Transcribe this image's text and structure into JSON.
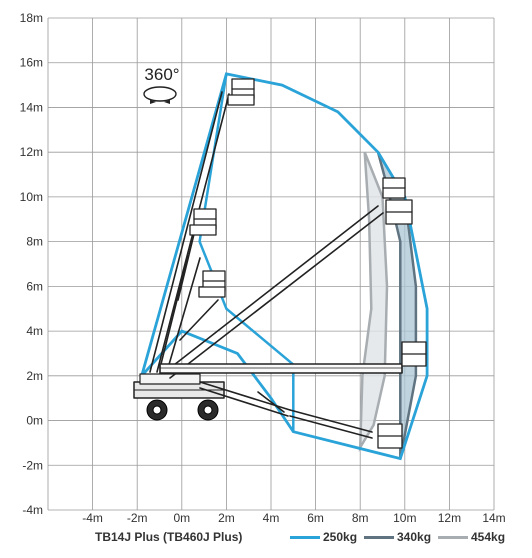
{
  "chart_data": {
    "type": "diagram",
    "rotation_label": "360°",
    "x_ticks": [
      "-4m",
      "-2m",
      "0m",
      "2m",
      "4m",
      "6m",
      "8m",
      "10m",
      "12m",
      "14m"
    ],
    "y_ticks": [
      "18m",
      "16m",
      "14m",
      "12m",
      "10m",
      "8m",
      "6m",
      "4m",
      "2m",
      "0m",
      "-2m",
      "-4m"
    ],
    "xlim": [
      -6,
      14
    ],
    "ylim": [
      -4,
      18
    ],
    "model_label": "TB14J Plus (TB460J Plus)",
    "legend": [
      {
        "label": "250kg",
        "color": "#2aa3d8"
      },
      {
        "label": "340kg",
        "color": "#5f7480"
      },
      {
        "label": "454kg",
        "color": "#a8adb1"
      }
    ],
    "envelope_250kg": [
      [
        -1.8,
        2
      ],
      [
        2,
        15.5
      ],
      [
        4.5,
        15
      ],
      [
        7,
        13.8
      ],
      [
        8.8,
        12
      ],
      [
        10,
        10
      ],
      [
        11,
        5
      ],
      [
        11,
        2
      ],
      [
        9.8,
        -1.7
      ],
      [
        5,
        -0.5
      ],
      [
        4,
        1
      ],
      [
        2.5,
        3
      ],
      [
        0,
        4
      ],
      [
        -1.8,
        2
      ]
    ],
    "inner_250kg": [
      [
        2,
        15.5
      ],
      [
        0.8,
        8
      ],
      [
        2,
        5
      ],
      [
        5,
        2.5
      ],
      [
        5,
        -0.5
      ]
    ],
    "envelope_340kg": [
      [
        8.8,
        12
      ],
      [
        10,
        10
      ],
      [
        10.5,
        6
      ],
      [
        10.5,
        2
      ],
      [
        9.8,
        -1.7
      ],
      [
        9.8,
        2
      ],
      [
        9.8,
        8
      ],
      [
        9.2,
        10.5
      ]
    ],
    "envelope_454kg": [
      [
        8.2,
        12
      ],
      [
        9,
        10
      ],
      [
        9.2,
        6
      ],
      [
        9.1,
        2
      ],
      [
        8.6,
        -0.2
      ],
      [
        8,
        -1.2
      ],
      [
        8.1,
        2
      ],
      [
        8.5,
        5
      ],
      [
        8.4,
        9
      ]
    ]
  }
}
